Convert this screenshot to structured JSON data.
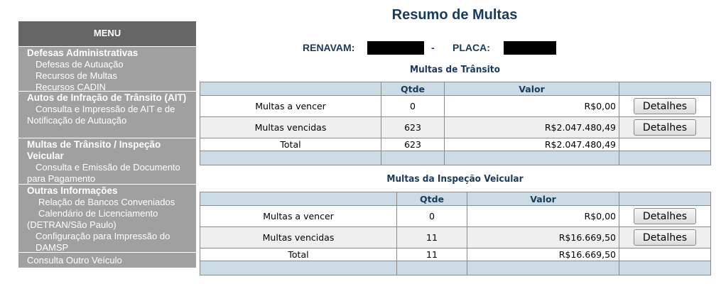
{
  "menu": {
    "header": "MENU",
    "sections": [
      {
        "title": "Defesas Administrativas",
        "items": [
          "Defesas de Autuação",
          "Recursos de Multas",
          "Recursos CADIN"
        ]
      },
      {
        "title": "Autos de Infração de Trânsito (AIT)",
        "items": [
          "Consulta e Impressão de AIT e de Notificação de Autuação"
        ]
      },
      {
        "title": "Multas de Trânsito / Inspeção Veicular",
        "items": [
          "Consulta e Emissão de Documento para Pagamento"
        ]
      },
      {
        "title": "Outras Informações",
        "items": [
          "Relação de Bancos Conveniados",
          "Calendário de Licenciamento (DETRAN/São Paulo)",
          "Configuração para Impressão do DAMSP"
        ]
      },
      {
        "title": "",
        "items": [
          "Consulta Outro Veículo"
        ]
      }
    ]
  },
  "page": {
    "title": "Resumo de Multas",
    "renavam_label": "RENAVAM:",
    "separator": "-",
    "placa_label": "PLACA:"
  },
  "transito": {
    "title": "Multas de Trânsito",
    "headers": [
      "",
      "Qtde",
      "Valor",
      ""
    ],
    "rows": [
      {
        "label": "Multas a vencer",
        "qtde": "0",
        "valor": "R$0,00",
        "button": "Detalhes"
      },
      {
        "label": "Multas vencidas",
        "qtde": "623",
        "valor": "R$2.047.480,49",
        "button": "Detalhes"
      }
    ],
    "total": {
      "label": "Total",
      "qtde": "623",
      "valor": "R$2.047.480,49"
    }
  },
  "inspecao": {
    "title": "Multas da Inspeção Veicular",
    "headers": [
      "",
      "Qtde",
      "Valor",
      ""
    ],
    "rows": [
      {
        "label": "Multas a vencer",
        "qtde": "0",
        "valor": "R$0,00",
        "button": "Detalhes"
      },
      {
        "label": "Multas vencidas",
        "qtde": "11",
        "valor": "R$16.669,50",
        "button": "Detalhes"
      }
    ],
    "total": {
      "label": "Total",
      "qtde": "11",
      "valor": "R$16.669,50"
    }
  }
}
